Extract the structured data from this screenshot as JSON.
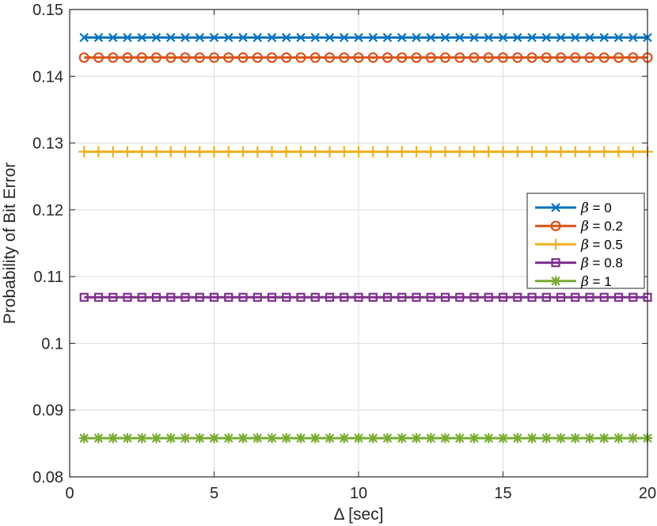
{
  "chart_data": {
    "type": "line",
    "title": "",
    "xlabel": "Δ [sec]",
    "ylabel": "Probability of Bit Error",
    "xlim": [
      0,
      20
    ],
    "ylim": [
      0.08,
      0.15
    ],
    "xticks": [
      0,
      5,
      10,
      15,
      20
    ],
    "xtick_labels": [
      "0",
      "5",
      "10",
      "15",
      "20"
    ],
    "yticks": [
      0.08,
      0.09,
      0.1,
      0.11,
      0.12,
      0.13,
      0.14,
      0.15
    ],
    "ytick_labels": [
      "0.08",
      "0.09",
      "0.1",
      "0.11",
      "0.12",
      "0.13",
      "0.14",
      "0.15"
    ],
    "grid": true,
    "legend_position": "right",
    "x": [
      0.5,
      1,
      1.5,
      2,
      2.5,
      3,
      3.5,
      4,
      4.5,
      5,
      5.5,
      6,
      6.5,
      7,
      7.5,
      8,
      8.5,
      9,
      9.5,
      10,
      10.5,
      11,
      11.5,
      12,
      12.5,
      13,
      13.5,
      14,
      14.5,
      15,
      15.5,
      16,
      16.5,
      17,
      17.5,
      18,
      18.5,
      19,
      19.5,
      20
    ],
    "series": [
      {
        "name": "β = 0",
        "legend_symbol": "β",
        "legend_rest": " = 0",
        "color": "#0072BD",
        "marker": "x",
        "value": 0.1458
      },
      {
        "name": "β = 0.2",
        "legend_symbol": "β",
        "legend_rest": " = 0.2",
        "color": "#D95319",
        "marker": "o",
        "value": 0.1428
      },
      {
        "name": "β = 0.5",
        "legend_symbol": "β",
        "legend_rest": " = 0.5",
        "color": "#EDB120",
        "marker": "+",
        "value": 0.1287
      },
      {
        "name": "β = 0.8",
        "legend_symbol": "β",
        "legend_rest": " = 0.8",
        "color": "#7E2F8E",
        "marker": "square",
        "value": 0.1069
      },
      {
        "name": "β = 1",
        "legend_symbol": "β",
        "legend_rest": " = 1",
        "color": "#77AC30",
        "marker": "asterisk",
        "value": 0.0858
      }
    ]
  }
}
